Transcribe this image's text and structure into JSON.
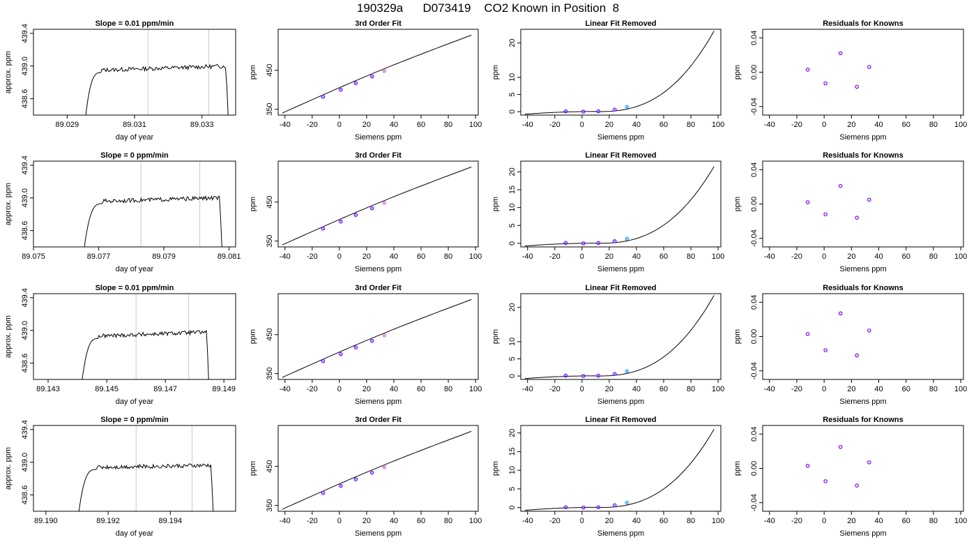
{
  "title": "190329a      D073419    CO2 Known in Position  8",
  "colors": {
    "axis": "#000000",
    "trace": "#000000",
    "vline": "#c8c8c8",
    "point": "#7b00ff",
    "point_alt": "#3399ff",
    "point_pink": "#ff66cc"
  },
  "chart_data": [
    {
      "row": 0,
      "panel": "timeseries",
      "type": "line",
      "title": "Slope =  0.01  ppm/min",
      "xlabel": "day of year",
      "ylabel": "approx. ppm",
      "xlim": [
        89.028,
        89.034
      ],
      "ylim": [
        438.4,
        439.45
      ],
      "xticks": [
        89.029,
        89.031,
        89.033
      ],
      "xtick_labels": [
        "89.029",
        "89.031",
        "89.033"
      ],
      "yticks": [
        438.6,
        439.0,
        439.4
      ],
      "ytick_labels": [
        "438.6",
        "439.0",
        "439.4"
      ],
      "vlines": [
        89.0314,
        89.0332
      ],
      "rise": [
        89.0295,
        89.03
      ],
      "fall": [
        89.0337,
        89.0338
      ],
      "plateau": 438.95,
      "plateau_end": 439.0
    },
    {
      "row": 0,
      "panel": "cubic",
      "type": "scatter",
      "title": "3rd Order Fit",
      "xlabel": "Siemens ppm",
      "ylabel": "ppm",
      "xlim": [
        -45,
        102
      ],
      "ylim": [
        335,
        555
      ],
      "xticks": [
        -40,
        -20,
        0,
        20,
        40,
        60,
        80,
        100
      ],
      "yticks": [
        350,
        450
      ],
      "ytick_labels": [
        "350",
        "450"
      ],
      "curve": {
        "x0": -42,
        "y0": 340,
        "x1": 97,
        "y1": 540
      },
      "points": [
        {
          "x": -12,
          "y": 382
        },
        {
          "x": 1,
          "y": 400
        },
        {
          "x": 12,
          "y": 417
        },
        {
          "x": 24,
          "y": 434
        },
        {
          "x": 33,
          "y": 448
        }
      ]
    },
    {
      "row": 0,
      "panel": "linear-removed",
      "type": "scatter",
      "title": "Linear Fit Removed",
      "xlabel": "Siemens ppm",
      "ylabel": "ppm",
      "xlim": [
        -45,
        102
      ],
      "ylim": [
        -1,
        24
      ],
      "xticks": [
        -40,
        -20,
        0,
        20,
        40,
        60,
        80,
        100
      ],
      "yticks": [
        0,
        5,
        10,
        20
      ],
      "curve_end": 23.5,
      "points": [
        {
          "x": -12,
          "y": 0.1
        },
        {
          "x": 1,
          "y": 0.0
        },
        {
          "x": 12,
          "y": 0.1
        },
        {
          "x": 24,
          "y": 0.6
        },
        {
          "x": 33,
          "y": 1.4
        }
      ]
    },
    {
      "row": 0,
      "panel": "residuals",
      "type": "scatter",
      "title": "Residuals for Knowns",
      "xlabel": "Siemens ppm",
      "ylabel": "ppm",
      "xlim": [
        -45,
        102
      ],
      "ylim": [
        -0.05,
        0.05
      ],
      "xticks": [
        -40,
        -20,
        0,
        20,
        40,
        60,
        80,
        100
      ],
      "yticks": [
        -0.04,
        0.0,
        0.04
      ],
      "ytick_labels": [
        "-0.04",
        "0.00",
        "0.04"
      ],
      "points": [
        {
          "x": -12,
          "y": 0.003
        },
        {
          "x": 1,
          "y": -0.013
        },
        {
          "x": 12,
          "y": 0.022
        },
        {
          "x": 24,
          "y": -0.017
        },
        {
          "x": 33,
          "y": 0.006
        }
      ]
    },
    {
      "row": 1,
      "panel": "timeseries",
      "type": "line",
      "title": "Slope =  0  ppm/min",
      "xlabel": "day of year",
      "ylabel": "approx. ppm",
      "xlim": [
        89.075,
        89.0812
      ],
      "ylim": [
        438.4,
        439.45
      ],
      "xticks": [
        89.075,
        89.077,
        89.079,
        89.081
      ],
      "xtick_labels": [
        "89.075",
        "89.077",
        "89.079",
        "89.081"
      ],
      "yticks": [
        438.6,
        439.0,
        439.4
      ],
      "ytick_labels": [
        "438.6",
        "439.0",
        "439.4"
      ],
      "vlines": [
        89.0783,
        89.0801
      ],
      "rise": [
        89.0765,
        89.0771
      ],
      "fall": [
        89.0807,
        89.0808
      ],
      "plateau": 438.96,
      "plateau_end": 439.0
    },
    {
      "row": 1,
      "panel": "cubic",
      "type": "scatter",
      "title": "3rd Order Fit",
      "xlabel": "Siemens ppm",
      "ylabel": "ppm",
      "xlim": [
        -45,
        102
      ],
      "ylim": [
        335,
        555
      ],
      "xticks": [
        -40,
        -20,
        0,
        20,
        40,
        60,
        80,
        100
      ],
      "yticks": [
        350,
        450
      ],
      "ytick_labels": [
        "350",
        "450"
      ],
      "curve": {
        "x0": -42,
        "y0": 340,
        "x1": 97,
        "y1": 540
      },
      "points": [
        {
          "x": -12,
          "y": 382
        },
        {
          "x": 1,
          "y": 400
        },
        {
          "x": 12,
          "y": 417
        },
        {
          "x": 24,
          "y": 434
        },
        {
          "x": 33,
          "y": 448
        }
      ]
    },
    {
      "row": 1,
      "panel": "linear-removed",
      "type": "scatter",
      "title": "Linear Fit Removed",
      "xlabel": "Siemens ppm",
      "ylabel": "ppm",
      "xlim": [
        -45,
        102
      ],
      "ylim": [
        -1,
        23
      ],
      "xticks": [
        -40,
        -20,
        0,
        20,
        40,
        60,
        80,
        100
      ],
      "yticks": [
        0,
        5,
        10,
        15,
        20
      ],
      "curve_end": 21.5,
      "points": [
        {
          "x": -12,
          "y": 0.1
        },
        {
          "x": 1,
          "y": 0.0
        },
        {
          "x": 12,
          "y": 0.1
        },
        {
          "x": 24,
          "y": 0.6
        },
        {
          "x": 33,
          "y": 1.3
        }
      ]
    },
    {
      "row": 1,
      "panel": "residuals",
      "type": "scatter",
      "title": "Residuals for Knowns",
      "xlabel": "Siemens ppm",
      "ylabel": "ppm",
      "xlim": [
        -45,
        102
      ],
      "ylim": [
        -0.05,
        0.05
      ],
      "xticks": [
        -40,
        -20,
        0,
        20,
        40,
        60,
        80,
        100
      ],
      "yticks": [
        -0.04,
        0.0,
        0.04
      ],
      "ytick_labels": [
        "-0.04",
        "0.00",
        "0.04"
      ],
      "points": [
        {
          "x": -12,
          "y": 0.002
        },
        {
          "x": 1,
          "y": -0.012
        },
        {
          "x": 12,
          "y": 0.021
        },
        {
          "x": 24,
          "y": -0.016
        },
        {
          "x": 33,
          "y": 0.005
        }
      ]
    },
    {
      "row": 2,
      "panel": "timeseries",
      "type": "line",
      "title": "Slope =  0.01  ppm/min",
      "xlabel": "day of year",
      "ylabel": "approx. ppm",
      "xlim": [
        89.1425,
        89.1494
      ],
      "ylim": [
        438.4,
        439.45
      ],
      "xticks": [
        89.143,
        89.145,
        89.147,
        89.149
      ],
      "xtick_labels": [
        "89.143",
        "89.145",
        "89.147",
        "89.149"
      ],
      "yticks": [
        438.6,
        439.0,
        439.4
      ],
      "ytick_labels": [
        "438.6",
        "439.0",
        "439.4"
      ],
      "vlines": [
        89.146,
        89.1478
      ],
      "rise": [
        89.1441,
        89.1447
      ],
      "fall": [
        89.1484,
        89.1485
      ],
      "plateau": 438.93,
      "plateau_end": 438.98
    },
    {
      "row": 2,
      "panel": "cubic",
      "type": "scatter",
      "title": "3rd Order Fit",
      "xlabel": "Siemens ppm",
      "ylabel": "ppm",
      "xlim": [
        -45,
        102
      ],
      "ylim": [
        335,
        555
      ],
      "xticks": [
        -40,
        -20,
        0,
        20,
        40,
        60,
        80,
        100
      ],
      "yticks": [
        350,
        450
      ],
      "ytick_labels": [
        "350",
        "450"
      ],
      "curve": {
        "x0": -42,
        "y0": 340,
        "x1": 97,
        "y1": 540
      },
      "points": [
        {
          "x": -12,
          "y": 382
        },
        {
          "x": 1,
          "y": 400
        },
        {
          "x": 12,
          "y": 417
        },
        {
          "x": 24,
          "y": 434
        },
        {
          "x": 33,
          "y": 448
        }
      ]
    },
    {
      "row": 2,
      "panel": "linear-removed",
      "type": "scatter",
      "title": "Linear Fit Removed",
      "xlabel": "Siemens ppm",
      "ylabel": "ppm",
      "xlim": [
        -45,
        102
      ],
      "ylim": [
        -1,
        24
      ],
      "xticks": [
        -40,
        -20,
        0,
        20,
        40,
        60,
        80,
        100
      ],
      "yticks": [
        0,
        5,
        10,
        20
      ],
      "curve_end": 23.5,
      "points": [
        {
          "x": -12,
          "y": 0.1
        },
        {
          "x": 1,
          "y": 0.0
        },
        {
          "x": 12,
          "y": 0.1
        },
        {
          "x": 24,
          "y": 0.6
        },
        {
          "x": 33,
          "y": 1.4
        }
      ]
    },
    {
      "row": 2,
      "panel": "residuals",
      "type": "scatter",
      "title": "Residuals for Knowns",
      "xlabel": "Siemens ppm",
      "ylabel": "ppm",
      "xlim": [
        -45,
        102
      ],
      "ylim": [
        -0.05,
        0.05
      ],
      "xticks": [
        -40,
        -20,
        0,
        20,
        40,
        60,
        80,
        100
      ],
      "yticks": [
        -0.04,
        0.0,
        0.04
      ],
      "ytick_labels": [
        "-0.04",
        "0.00",
        "0.04"
      ],
      "points": [
        {
          "x": -12,
          "y": 0.003
        },
        {
          "x": 1,
          "y": -0.016
        },
        {
          "x": 12,
          "y": 0.027
        },
        {
          "x": 24,
          "y": -0.022
        },
        {
          "x": 33,
          "y": 0.007
        }
      ]
    },
    {
      "row": 3,
      "panel": "timeseries",
      "type": "line",
      "title": "Slope =  0  ppm/min",
      "xlabel": "day of year",
      "ylabel": "approx. ppm",
      "xlim": [
        89.1896,
        89.1961
      ],
      "ylim": [
        438.4,
        439.45
      ],
      "xticks": [
        89.19,
        89.192,
        89.194
      ],
      "xtick_labels": [
        "89.190",
        "89.192",
        "89.194"
      ],
      "yticks": [
        438.6,
        439.0,
        439.4
      ],
      "ytick_labels": [
        "438.6",
        "439.0",
        "439.4"
      ],
      "vlines": [
        89.1929,
        89.1947
      ],
      "rise": [
        89.191,
        89.1916
      ],
      "fall": [
        89.1953,
        89.1954
      ],
      "plateau": 438.94,
      "plateau_end": 438.96
    },
    {
      "row": 3,
      "panel": "cubic",
      "type": "scatter",
      "title": "3rd Order Fit",
      "xlabel": "Siemens ppm",
      "ylabel": "ppm",
      "xlim": [
        -45,
        102
      ],
      "ylim": [
        335,
        555
      ],
      "xticks": [
        -40,
        -20,
        0,
        20,
        40,
        60,
        80,
        100
      ],
      "yticks": [
        350,
        450
      ],
      "ytick_labels": [
        "350",
        "450"
      ],
      "curve": {
        "x0": -42,
        "y0": 340,
        "x1": 97,
        "y1": 540
      },
      "points": [
        {
          "x": -12,
          "y": 382
        },
        {
          "x": 1,
          "y": 400
        },
        {
          "x": 12,
          "y": 417
        },
        {
          "x": 24,
          "y": 434
        },
        {
          "x": 33,
          "y": 448
        }
      ]
    },
    {
      "row": 3,
      "panel": "linear-removed",
      "type": "scatter",
      "title": "Linear Fit Removed",
      "xlabel": "Siemens ppm",
      "ylabel": "ppm",
      "xlim": [
        -45,
        102
      ],
      "ylim": [
        -1,
        22
      ],
      "xticks": [
        -40,
        -20,
        0,
        20,
        40,
        60,
        80,
        100
      ],
      "yticks": [
        0,
        5,
        10,
        15,
        20
      ],
      "curve_end": 21,
      "points": [
        {
          "x": -12,
          "y": 0.1
        },
        {
          "x": 1,
          "y": 0.0
        },
        {
          "x": 12,
          "y": 0.1
        },
        {
          "x": 24,
          "y": 0.6
        },
        {
          "x": 33,
          "y": 1.3
        }
      ]
    },
    {
      "row": 3,
      "panel": "residuals",
      "type": "scatter",
      "title": "Residuals for Knowns",
      "xlabel": "Siemens ppm",
      "ylabel": "ppm",
      "xlim": [
        -45,
        102
      ],
      "ylim": [
        -0.05,
        0.05
      ],
      "xticks": [
        -40,
        -20,
        0,
        20,
        40,
        60,
        80,
        100
      ],
      "yticks": [
        -0.04,
        0.0,
        0.04
      ],
      "ytick_labels": [
        "-0.04",
        "0.00",
        "0.04"
      ],
      "points": [
        {
          "x": -12,
          "y": 0.003
        },
        {
          "x": 1,
          "y": -0.015
        },
        {
          "x": 12,
          "y": 0.025
        },
        {
          "x": 24,
          "y": -0.02
        },
        {
          "x": 33,
          "y": 0.007
        }
      ]
    }
  ]
}
